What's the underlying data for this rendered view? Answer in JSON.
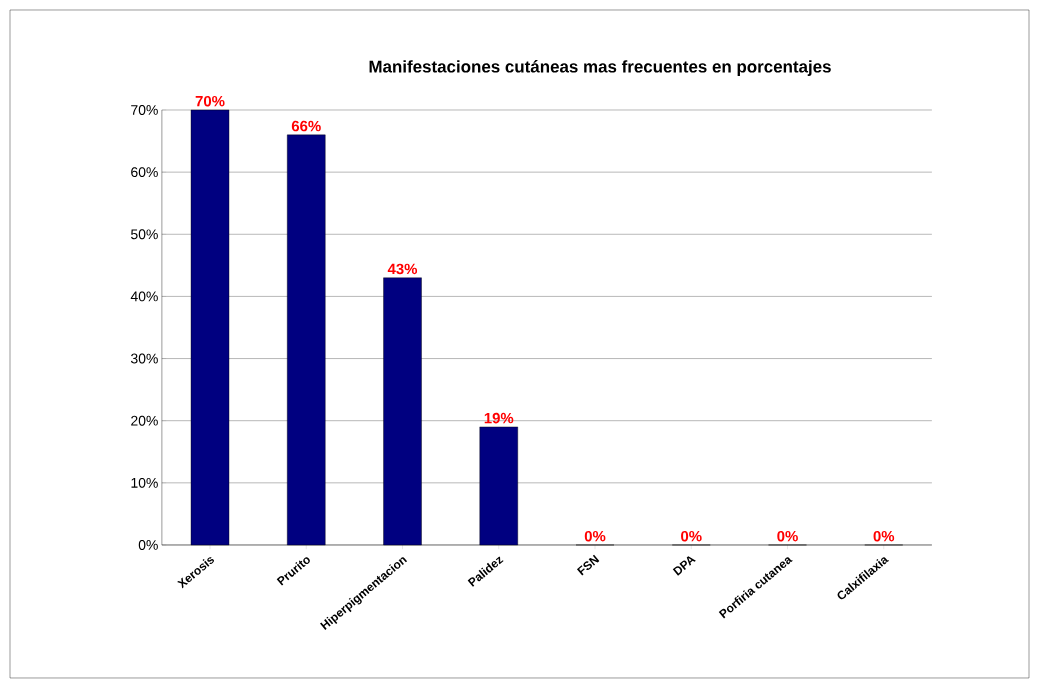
{
  "chart_data": {
    "type": "bar",
    "title": "Manifestaciones cutáneas mas frecuentes en porcentajes",
    "categories": [
      "Xerosis",
      "Prurito",
      "Hiperpigmentacion",
      "Palidez",
      "FSN",
      "DPA",
      "Porfiria cutanea",
      "Calxifilaxia"
    ],
    "values": [
      70,
      66,
      43,
      19,
      0,
      0,
      0,
      0
    ],
    "value_labels": [
      "70%",
      "66%",
      "43%",
      "19%",
      "0%",
      "0%",
      "0%",
      "0%"
    ],
    "color": "#000080",
    "ylim": [
      0,
      70
    ],
    "yticks": [
      {
        "value": 0,
        "label": "0%"
      },
      {
        "value": 10,
        "label": "10%"
      },
      {
        "value": 20,
        "label": "20%"
      },
      {
        "value": 30,
        "label": "30%"
      },
      {
        "value": 40,
        "label": "40%"
      },
      {
        "value": 50,
        "label": "50%"
      },
      {
        "value": 60,
        "label": "60%"
      },
      {
        "value": 70,
        "label": "70%"
      }
    ],
    "grid": "y"
  }
}
